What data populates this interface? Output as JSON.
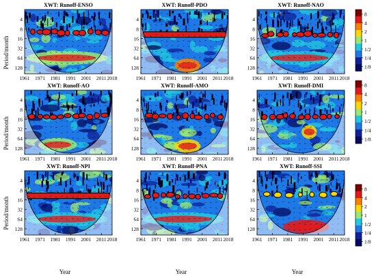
{
  "chart_data": {
    "type": "heatmap",
    "figure": "cross-wavelet transform panels",
    "y_axis_label": "Period/month",
    "x_axis_label": "Year",
    "period_ticks": [
      "4",
      "8",
      "16",
      "32",
      "64",
      "128"
    ],
    "period_values": [
      4,
      8,
      16,
      32,
      64,
      128
    ],
    "period_range": [
      2,
      200
    ],
    "year_ticks": [
      "1961",
      "1971",
      "1981",
      "1991",
      "2001",
      "2011",
      "2018"
    ],
    "year_values": [
      1961,
      1971,
      1981,
      1991,
      2001,
      2011,
      2018
    ],
    "year_range": [
      1961,
      2018
    ],
    "log_scale_y": true,
    "colorbar_ticks": [
      "8",
      "4",
      "2",
      "1",
      "1/2",
      "1/4",
      "1/8"
    ],
    "colorbar_values": [
      8,
      4,
      2,
      1,
      0.5,
      0.25,
      0.125
    ],
    "colorbar_colors": [
      "#7f0000",
      "#e31a1c",
      "#ff7f00",
      "#ffd700",
      "#9be870",
      "#20c8e0",
      "#1e78e6",
      "#10209a",
      "#050a60"
    ],
    "panels": [
      {
        "title": "XWT: Runoff-ENSO",
        "band_period": 10,
        "band_style": "blobs",
        "low_freq_period": 64,
        "low_freq_years": [
          1962,
          2015
        ],
        "low_freq_level": 4
      },
      {
        "title": "XWT: Runoff-PDO",
        "band_period": 12,
        "band_style": "continuous",
        "low_freq_period": 110,
        "low_freq_years": [
          1983,
          2000
        ],
        "low_freq_level": 6
      },
      {
        "title": "XWT: Runoff-NAO",
        "band_period": 12,
        "band_style": "blobs",
        "low_freq_period": 64,
        "low_freq_years": [
          1962,
          2015
        ],
        "low_freq_level": 3
      },
      {
        "title": "XWT: Runoff-AO",
        "band_period": 13,
        "band_style": "blobs",
        "low_freq_period": 100,
        "low_freq_years": [
          1970,
          1995
        ],
        "low_freq_level": 4
      },
      {
        "title": "XWT: Runoff-AMO",
        "band_period": 13,
        "band_style": "blobs",
        "low_freq_period": 110,
        "low_freq_years": [
          1983,
          2000
        ],
        "low_freq_level": 5
      },
      {
        "title": "XWT: Runoff-DMI",
        "band_period": 13,
        "band_style": "blobs",
        "low_freq_period": 40,
        "low_freq_years": [
          1990,
          2000
        ],
        "low_freq_level": 5
      },
      {
        "title": "XWT: Runoff-NPI",
        "band_period": 12,
        "band_style": "continuous",
        "low_freq_period": 64,
        "low_freq_years": [
          1962,
          2015
        ],
        "low_freq_level": 3
      },
      {
        "title": "XWT: Runoff-PNA",
        "band_period": 12,
        "band_style": "blobs",
        "low_freq_period": 64,
        "low_freq_years": [
          1962,
          2015
        ],
        "low_freq_level": 3
      },
      {
        "title": "XWT: Runoff-SSI",
        "band_period": 11,
        "band_style": "sparse",
        "low_freq_period": 110,
        "low_freq_years": [
          1978,
          2008
        ],
        "low_freq_level": 7
      }
    ]
  }
}
